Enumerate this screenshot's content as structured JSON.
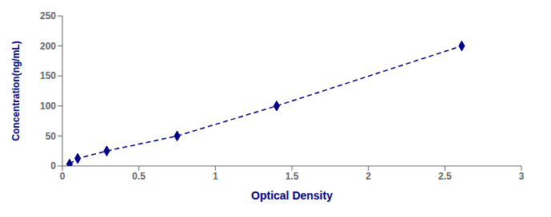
{
  "chart_data": {
    "type": "line",
    "x": [
      0.047,
      0.1,
      0.29,
      0.75,
      1.4,
      2.61
    ],
    "values": [
      3.125,
      12.5,
      25,
      50,
      100,
      200
    ],
    "color": "#00008B",
    "marker": "diamond",
    "line_style": "dashed",
    "xlabel": "Optical Density",
    "ylabel": "Concentration(ng/mL)",
    "xlim": [
      0,
      3
    ],
    "ylim": [
      0,
      250
    ],
    "xticks": [
      0,
      0.5,
      1,
      1.5,
      2,
      2.5,
      3
    ],
    "yticks": [
      0,
      50,
      100,
      150,
      200,
      250
    ],
    "grid": false
  }
}
